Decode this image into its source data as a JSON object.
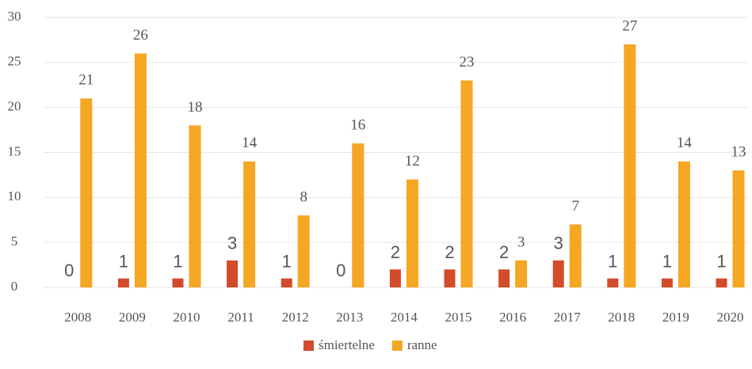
{
  "chart_data": {
    "type": "bar",
    "categories": [
      "2008",
      "2009",
      "2010",
      "2011",
      "2012",
      "2013",
      "2014",
      "2015",
      "2016",
      "2017",
      "2018",
      "2019",
      "2020"
    ],
    "series": [
      {
        "name": "śmiertelne",
        "color": "#d24b2a",
        "values": [
          0,
          1,
          1,
          3,
          1,
          0,
          2,
          2,
          2,
          3,
          1,
          1,
          1
        ]
      },
      {
        "name": "ranne",
        "color": "#f5a623",
        "values": [
          21,
          26,
          18,
          14,
          8,
          16,
          12,
          23,
          3,
          7,
          27,
          14,
          13
        ]
      }
    ],
    "ylim": [
      0,
      30
    ],
    "yticks": [
      0,
      5,
      10,
      15,
      20,
      25,
      30
    ],
    "grid": true,
    "legend": "bottom"
  }
}
